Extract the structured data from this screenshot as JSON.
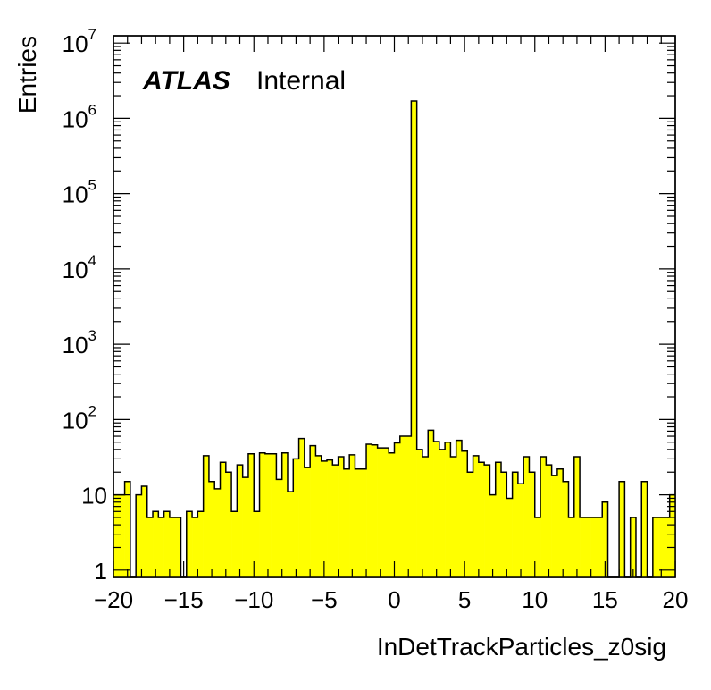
{
  "chart_data": {
    "type": "bar",
    "style": "histogram",
    "xlabel": "InDetTrackParticles_z0sig",
    "ylabel": "Entries",
    "xlim": [
      -20,
      20
    ],
    "ylim": [
      0.8,
      12500000
    ],
    "yscale": "log",
    "grid": false,
    "fill_color": "#ffff00",
    "line_color": "#000000",
    "annotation": {
      "bold": "ATLAS",
      "regular": "Internal"
    },
    "x_ticks": [
      "−20",
      "−15",
      "−10",
      "−5",
      "0",
      "5",
      "10",
      "15",
      "20"
    ],
    "y_ticks": [
      {
        "base": "1",
        "exp": ""
      },
      {
        "base": "10",
        "exp": ""
      },
      {
        "base": "10",
        "exp": "2"
      },
      {
        "base": "10",
        "exp": "3"
      },
      {
        "base": "10",
        "exp": "4"
      },
      {
        "base": "10",
        "exp": "5"
      },
      {
        "base": "10",
        "exp": "6"
      },
      {
        "base": "10",
        "exp": "7"
      }
    ],
    "bin_edges_start": -20,
    "bin_width": 0.4,
    "values": [
      10,
      10,
      15,
      0,
      10,
      13,
      5,
      6,
      5,
      6,
      5,
      5,
      0,
      6,
      5,
      6,
      33,
      15,
      12,
      27,
      20,
      6,
      25,
      17,
      35,
      6,
      36,
      35,
      35,
      16,
      36,
      11,
      30,
      56,
      23,
      45,
      33,
      28,
      29,
      25,
      32,
      22,
      34,
      22,
      22,
      47,
      46,
      42,
      42,
      36,
      49,
      60,
      60,
      1700000,
      40,
      32,
      72,
      51,
      40,
      50,
      32,
      53,
      38,
      20,
      33,
      27,
      25,
      10,
      27,
      20,
      9,
      20,
      14,
      32,
      20,
      5,
      32,
      25,
      18,
      22,
      15,
      5,
      32,
      5,
      5,
      5,
      5,
      8,
      0,
      0,
      15,
      0,
      5,
      0,
      15,
      0,
      5,
      5,
      5,
      10
    ]
  }
}
